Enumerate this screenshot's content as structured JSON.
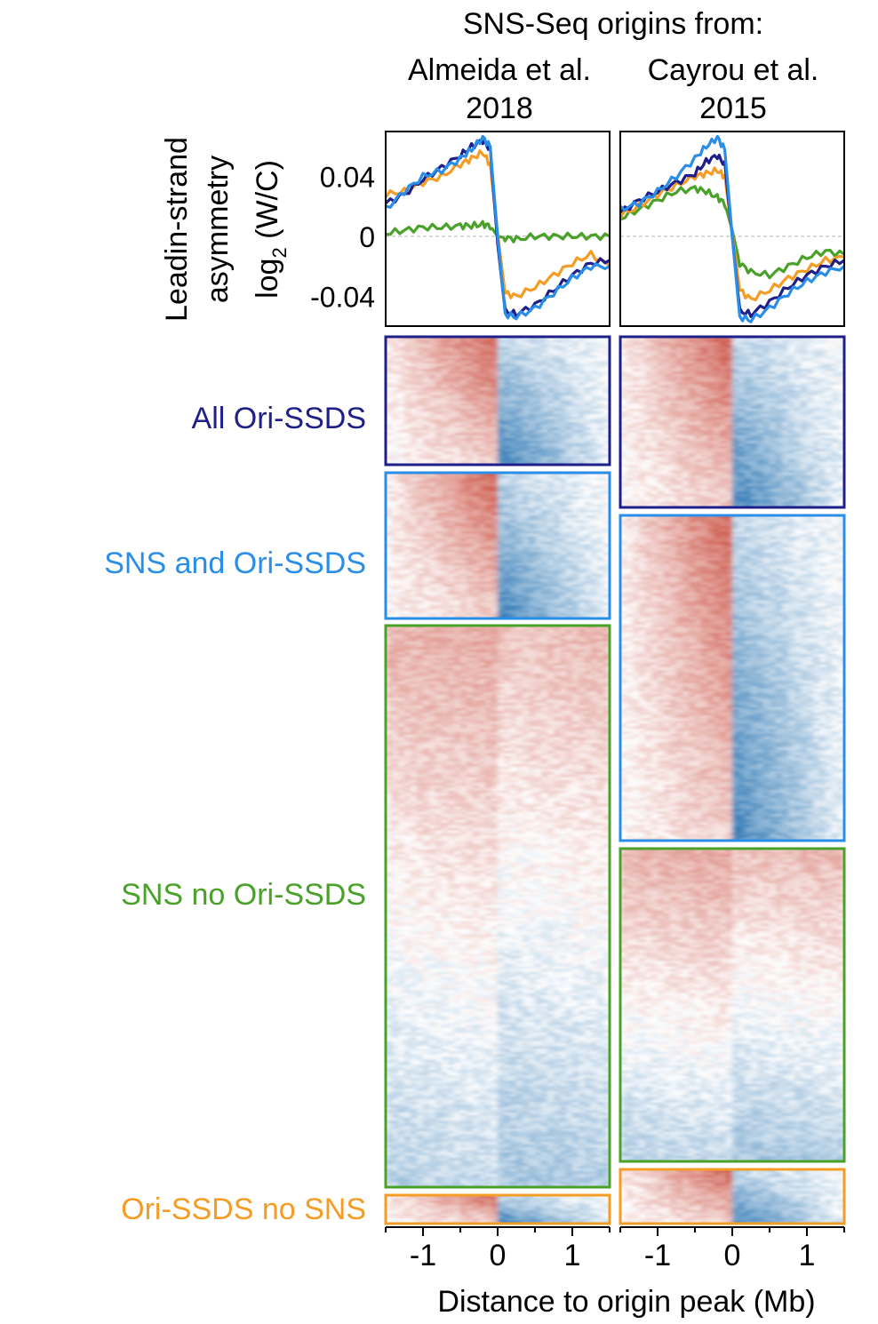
{
  "header": {
    "title": "SNS-Seq origins from:",
    "col1_line1": "Almeida et al.",
    "col1_line2": "2018",
    "col2_line1": "Cayrou et al.",
    "col2_line2": "2015"
  },
  "yaxis": {
    "label_line1": "Leadin-strand",
    "label_line2": "asymmetry",
    "label_line3_main": "log",
    "label_line3_sub": "2",
    "label_line3_rest": " (W/C)"
  },
  "xaxis": {
    "label": "Distance to origin peak (Mb)"
  },
  "groups": [
    {
      "label": "All Ori-SSDS",
      "color": "#1f1f8a"
    },
    {
      "label": "SNS and Ori-SSDS",
      "color": "#2a8ee8"
    },
    {
      "label": "SNS no Ori-SSDS",
      "color": "#4aa12a"
    },
    {
      "label": "Ori-SSDS no SNS",
      "color": "#f59c25"
    }
  ],
  "chart_data": [
    {
      "type": "line",
      "panel": "Almeida et al. 2018",
      "xlabel": "Distance to origin peak (Mb)",
      "ylabel": "Leadin-strand asymmetry log2 (W/C)",
      "xlim": [
        -1.5,
        1.5
      ],
      "ylim": [
        -0.06,
        0.07
      ],
      "yticks": [
        -0.04,
        0,
        0.04
      ],
      "ytick_labels": [
        "-0.04",
        "0",
        "0.04"
      ],
      "zero_line": true,
      "x": [
        -1.5,
        -1.25,
        -1.0,
        -0.75,
        -0.5,
        -0.35,
        -0.2,
        -0.1,
        0.0,
        0.1,
        0.25,
        0.5,
        0.75,
        1.0,
        1.25,
        1.5
      ],
      "series": [
        {
          "name": "All Ori-SSDS",
          "color": "#1f1f8a",
          "values": [
            0.022,
            0.028,
            0.038,
            0.046,
            0.054,
            0.06,
            0.064,
            0.058,
            -0.005,
            -0.05,
            -0.052,
            -0.046,
            -0.036,
            -0.026,
            -0.018,
            -0.016
          ]
        },
        {
          "name": "SNS and Ori-SSDS",
          "color": "#2a8ee8",
          "values": [
            0.018,
            0.03,
            0.04,
            0.044,
            0.052,
            0.058,
            0.066,
            0.06,
            0.0,
            -0.052,
            -0.054,
            -0.048,
            -0.038,
            -0.028,
            -0.02,
            -0.02
          ]
        },
        {
          "name": "SNS no Ori-SSDS",
          "color": "#4aa12a",
          "values": [
            0.002,
            0.004,
            0.006,
            0.006,
            0.007,
            0.007,
            0.008,
            0.007,
            0.0,
            -0.001,
            -0.002,
            0.0,
            0.0,
            0.0,
            0.0,
            0.0
          ]
        },
        {
          "name": "Ori-SSDS no SNS",
          "color": "#f59c25",
          "values": [
            0.028,
            0.03,
            0.036,
            0.04,
            0.048,
            0.052,
            0.056,
            0.048,
            0.002,
            -0.038,
            -0.04,
            -0.034,
            -0.026,
            -0.018,
            -0.012,
            -0.02
          ]
        }
      ]
    },
    {
      "type": "line",
      "panel": "Cayrou et al. 2015",
      "xlabel": "Distance to origin peak (Mb)",
      "ylabel": "Leadin-strand asymmetry log2 (W/C)",
      "xlim": [
        -1.5,
        1.5
      ],
      "ylim": [
        -0.06,
        0.07
      ],
      "yticks": [
        -0.04,
        0,
        0.04
      ],
      "ytick_labels": [
        "-0.04",
        "0",
        "0.04"
      ],
      "zero_line": true,
      "x": [
        -1.5,
        -1.25,
        -1.0,
        -0.75,
        -0.5,
        -0.35,
        -0.2,
        -0.1,
        0.0,
        0.1,
        0.25,
        0.5,
        0.75,
        1.0,
        1.25,
        1.5
      ],
      "series": [
        {
          "name": "All Ori-SSDS",
          "color": "#1f1f8a",
          "values": [
            0.016,
            0.024,
            0.03,
            0.036,
            0.042,
            0.05,
            0.054,
            0.048,
            0.0,
            -0.05,
            -0.052,
            -0.044,
            -0.034,
            -0.026,
            -0.02,
            -0.016
          ]
        },
        {
          "name": "SNS and Ori-SSDS",
          "color": "#2a8ee8",
          "values": [
            0.018,
            0.022,
            0.03,
            0.04,
            0.052,
            0.06,
            0.066,
            0.058,
            0.0,
            -0.054,
            -0.056,
            -0.048,
            -0.038,
            -0.03,
            -0.024,
            -0.02
          ]
        },
        {
          "name": "SNS no Ori-SSDS",
          "color": "#4aa12a",
          "values": [
            0.012,
            0.018,
            0.024,
            0.03,
            0.032,
            0.03,
            0.026,
            0.022,
            0.004,
            -0.018,
            -0.024,
            -0.026,
            -0.02,
            -0.014,
            -0.01,
            -0.012
          ]
        },
        {
          "name": "Ori-SSDS no SNS",
          "color": "#f59c25",
          "values": [
            0.014,
            0.02,
            0.028,
            0.034,
            0.04,
            0.042,
            0.044,
            0.04,
            0.002,
            -0.036,
            -0.042,
            -0.036,
            -0.028,
            -0.022,
            -0.016,
            -0.014
          ]
        }
      ]
    },
    {
      "type": "heatmap",
      "panel": "Almeida et al. 2018",
      "xlabel": "Distance to origin peak (Mb)",
      "xlim": [
        -1.5,
        1.5
      ],
      "xticks": [
        -1,
        0,
        1
      ],
      "xtick_labels": [
        "-1",
        "0",
        "1"
      ],
      "color_scale": "blue-white-red",
      "groups": [
        "All Ori-SSDS",
        "SNS and Ori-SSDS",
        "SNS no Ori-SSDS",
        "Ori-SSDS no SNS"
      ]
    },
    {
      "type": "heatmap",
      "panel": "Cayrou et al. 2015",
      "xlabel": "Distance to origin peak (Mb)",
      "xlim": [
        -1.5,
        1.5
      ],
      "xticks": [
        -1,
        0,
        1
      ],
      "xtick_labels": [
        "-1",
        "0",
        "1"
      ],
      "color_scale": "blue-white-red",
      "groups": [
        "All Ori-SSDS",
        "SNS and Ori-SSDS",
        "SNS no Ori-SSDS",
        "Ori-SSDS no SNS"
      ]
    }
  ]
}
